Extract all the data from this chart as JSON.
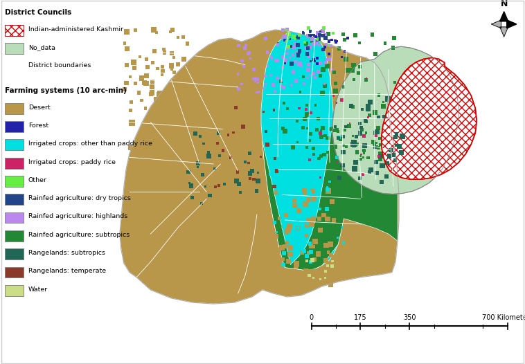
{
  "legend_title_1": "District Councils",
  "legend_title_2": "Farming systems (10 arc-min)",
  "legend_items_district": [
    {
      "label": "Indian-administered Kashmir",
      "color": "#ffffff",
      "hatch": "xxx",
      "edgecolor": "#dd0000"
    },
    {
      "label": "No_data",
      "color": "#b8ddb8",
      "hatch": "",
      "edgecolor": "#888888"
    },
    {
      "label": "District boundaries",
      "color": null,
      "hatch": "",
      "edgecolor": null
    }
  ],
  "legend_items_farming": [
    {
      "label": "Desert",
      "color": "#b8964a"
    },
    {
      "label": "Forest",
      "color": "#2222aa"
    },
    {
      "label": "Irrigated crops: other than paddy rice",
      "color": "#00e0e0"
    },
    {
      "label": "Irrigated crops: paddy rice",
      "color": "#cc2266"
    },
    {
      "label": "Other",
      "color": "#66ee44"
    },
    {
      "label": "Rainfed agriculture: dry tropics",
      "color": "#224488"
    },
    {
      "label": "Rainfed agriculture: highlands",
      "color": "#bb88ee"
    },
    {
      "label": "Rainfed agriculture: subtropics",
      "color": "#228833"
    },
    {
      "label": "Rangelands: subtropics",
      "color": "#226655"
    },
    {
      "label": "Rangelands: temperate",
      "color": "#8B3A2A"
    },
    {
      "label": "Water",
      "color": "#ccdd88"
    }
  ],
  "background_color": "#ffffff",
  "fig_width": 7.58,
  "fig_height": 5.26
}
